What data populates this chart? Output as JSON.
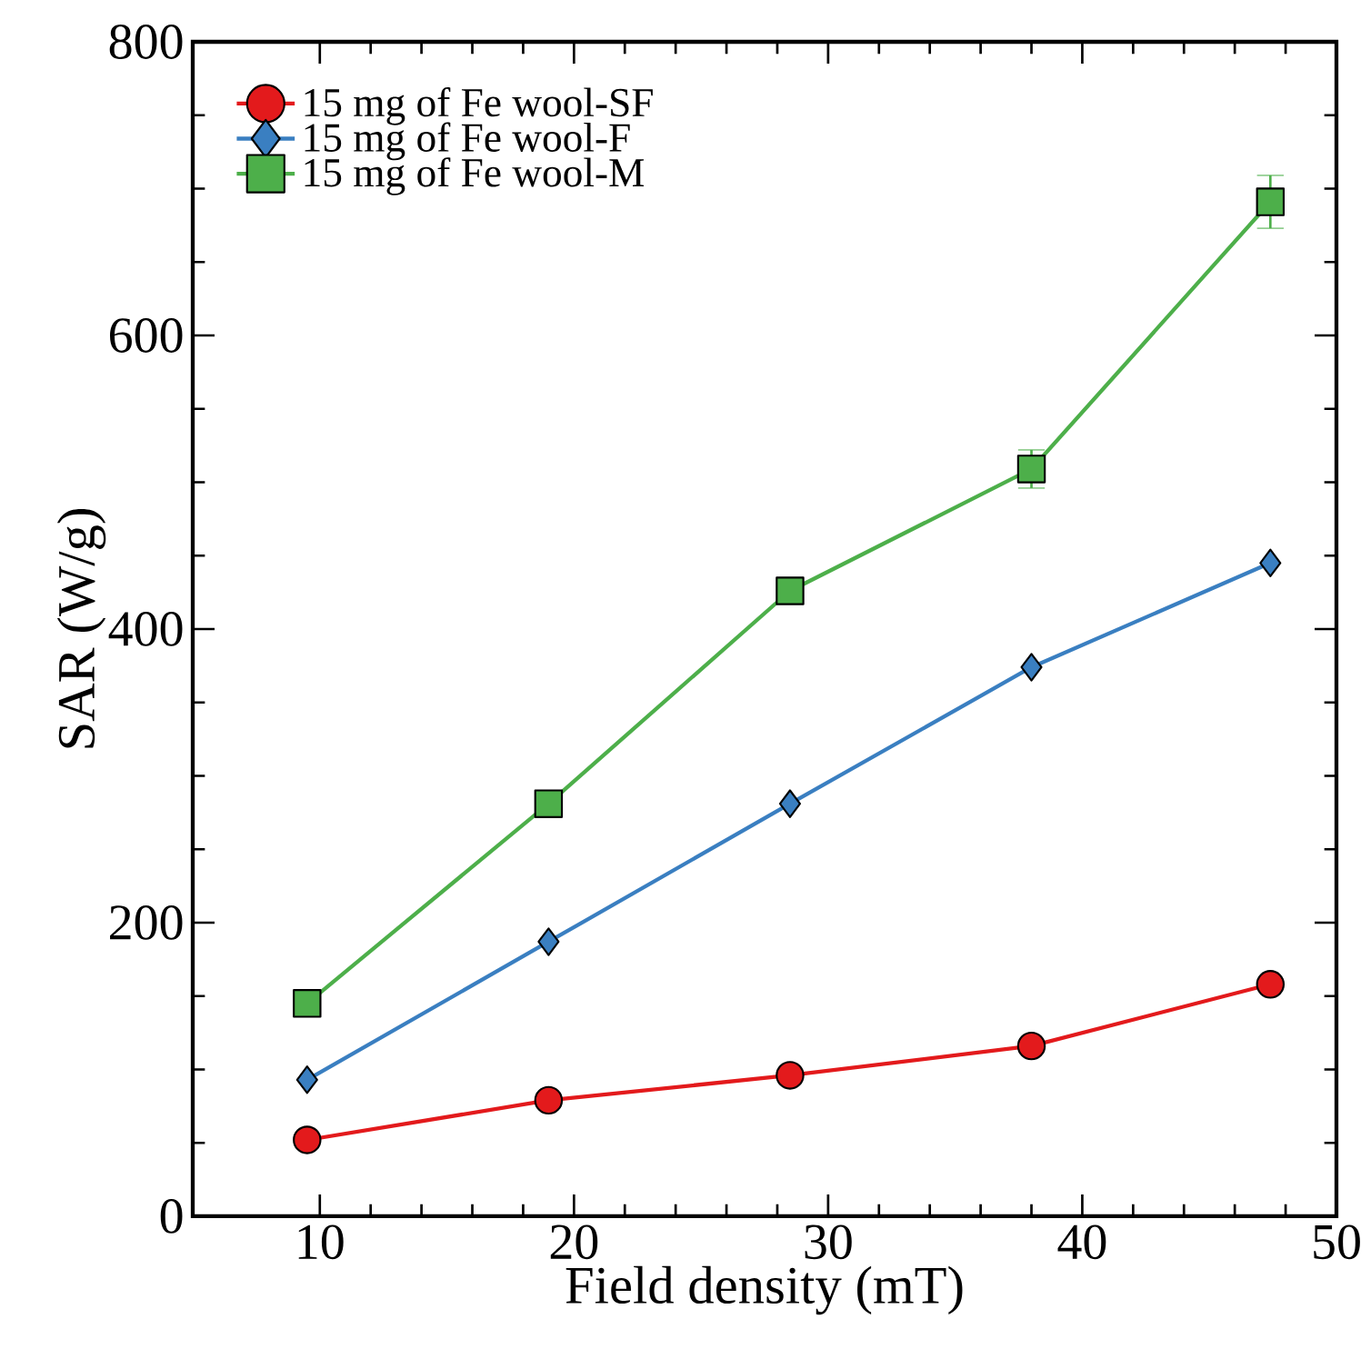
{
  "chart_data": {
    "type": "line",
    "xlabel": "Field density (mT)",
    "ylabel": "SAR (W/g)",
    "xlim": [
      5,
      50
    ],
    "xticks": [
      10,
      20,
      30,
      40,
      50
    ],
    "ylim": [
      0,
      800
    ],
    "yticks": [
      0,
      200,
      400,
      600,
      800
    ],
    "grid": false,
    "legend": "top left",
    "line_style": "solid",
    "x": [
      9.5,
      19,
      28.5,
      38,
      47.4
    ],
    "series": [
      {
        "name": "15 mg of Fe wool-SF",
        "color": "#e31a1c",
        "marker": "circle",
        "values": [
          52,
          79,
          96,
          116,
          158
        ]
      },
      {
        "name": "15 mg of Fe wool-F",
        "color": "#3a7fc1",
        "marker": "diamond",
        "values": [
          93,
          187,
          281,
          374,
          445
        ]
      },
      {
        "name": "15 mg of Fe wool-M",
        "color": "#4daf4a",
        "marker": "square",
        "values": [
          145,
          281,
          426,
          509,
          691
        ],
        "errors": [
          null,
          null,
          null,
          13,
          18
        ]
      }
    ]
  }
}
